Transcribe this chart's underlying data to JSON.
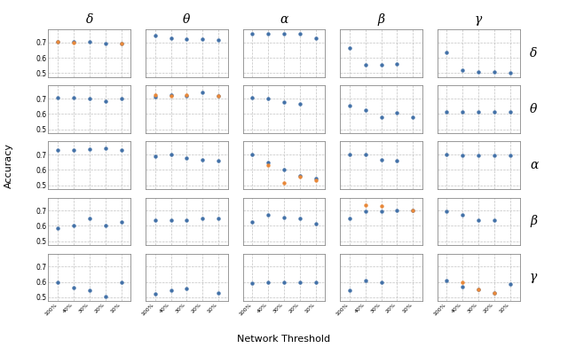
{
  "col_labels": [
    "δ",
    "θ",
    "α",
    "β",
    "γ"
  ],
  "row_labels": [
    "δ",
    "θ",
    "α",
    "β",
    "γ"
  ],
  "x_labels": [
    "100%",
    "40%",
    "30%",
    "20%",
    "10%"
  ],
  "x_vals": [
    0,
    1,
    2,
    3,
    4
  ],
  "xlabel": "Network Threshold",
  "ylabel": "Accuracy",
  "ylim": [
    0.475,
    0.785
  ],
  "yticks": [
    0.5,
    0.6,
    0.7
  ],
  "color_blue": "#4472a8",
  "color_orange": "#e8883a",
  "dot_size": 10,
  "data": {
    "row0_col0": {
      "blue": [
        0.705,
        0.703,
        0.703,
        0.695,
        0.695
      ],
      "orange": [
        0.705,
        0.697,
        null,
        null,
        0.692
      ]
    },
    "row0_col1": {
      "blue": [
        0.745,
        0.73,
        0.725,
        0.722,
        0.72
      ],
      "orange": [
        null,
        null,
        null,
        null,
        null
      ]
    },
    "row0_col2": {
      "blue": [
        0.755,
        0.758,
        0.755,
        0.755,
        0.73
      ],
      "orange": [
        null,
        null,
        null,
        null,
        null
      ]
    },
    "row0_col3": {
      "blue": [
        0.665,
        0.555,
        0.555,
        0.56,
        null
      ],
      "orange": [
        null,
        null,
        null,
        null,
        null
      ]
    },
    "row0_col4": {
      "blue": [
        0.635,
        0.52,
        0.51,
        0.51,
        0.505
      ],
      "orange": [
        null,
        null,
        null,
        null,
        null
      ]
    },
    "row1_col0": {
      "blue": [
        0.705,
        0.705,
        0.703,
        0.685,
        0.7
      ],
      "orange": [
        null,
        null,
        null,
        null,
        null
      ]
    },
    "row1_col1": {
      "blue": [
        0.71,
        0.725,
        0.72,
        0.742,
        0.715
      ],
      "orange": [
        0.725,
        0.72,
        0.722,
        null,
        0.718
      ]
    },
    "row1_col2": {
      "blue": [
        0.705,
        0.7,
        0.68,
        0.668,
        null
      ],
      "orange": [
        null,
        null,
        null,
        null,
        null
      ]
    },
    "row1_col3": {
      "blue": [
        0.655,
        0.625,
        0.578,
        0.61,
        0.58
      ],
      "orange": [
        null,
        null,
        null,
        null,
        null
      ]
    },
    "row1_col4": {
      "blue": [
        0.615,
        0.612,
        0.615,
        0.615,
        0.615
      ],
      "orange": [
        null,
        null,
        null,
        null,
        null
      ]
    },
    "row2_col0": {
      "blue": [
        0.73,
        0.73,
        0.735,
        0.74,
        0.73
      ],
      "orange": [
        null,
        null,
        null,
        null,
        null
      ]
    },
    "row2_col1": {
      "blue": [
        0.692,
        0.698,
        0.68,
        0.668,
        0.66
      ],
      "orange": [
        null,
        null,
        null,
        null,
        null
      ]
    },
    "row2_col2": {
      "blue": [
        0.7,
        0.65,
        0.6,
        0.56,
        0.545
      ],
      "orange": [
        null,
        0.63,
        0.515,
        0.555,
        0.535
      ]
    },
    "row2_col3": {
      "blue": [
        0.7,
        0.7,
        0.665,
        0.66,
        null
      ],
      "orange": [
        null,
        null,
        null,
        null,
        null
      ]
    },
    "row2_col4": {
      "blue": [
        0.7,
        0.695,
        0.695,
        0.695,
        0.695
      ],
      "orange": [
        null,
        null,
        null,
        null,
        null
      ]
    },
    "row3_col0": {
      "blue": [
        0.585,
        0.605,
        0.65,
        0.6,
        0.625
      ],
      "orange": [
        null,
        null,
        null,
        null,
        null
      ]
    },
    "row3_col1": {
      "blue": [
        0.635,
        0.64,
        0.638,
        0.648,
        0.648
      ],
      "orange": [
        null,
        null,
        null,
        null,
        null
      ]
    },
    "row3_col2": {
      "blue": [
        0.625,
        0.67,
        0.655,
        0.65,
        0.615
      ],
      "orange": [
        null,
        null,
        null,
        null,
        null
      ]
    },
    "row3_col3": {
      "blue": [
        0.65,
        0.695,
        0.695,
        0.7,
        0.7
      ],
      "orange": [
        null,
        0.735,
        0.733,
        null,
        0.7
      ]
    },
    "row3_col4": {
      "blue": [
        0.695,
        0.67,
        0.64,
        0.64,
        null
      ],
      "orange": [
        null,
        null,
        null,
        null,
        null
      ]
    },
    "row4_col0": {
      "blue": [
        0.6,
        0.56,
        0.545,
        0.505,
        0.6
      ],
      "orange": [
        null,
        null,
        null,
        null,
        null
      ]
    },
    "row4_col1": {
      "blue": [
        0.52,
        0.545,
        0.558,
        null,
        0.53
      ],
      "orange": [
        null,
        null,
        null,
        null,
        null
      ]
    },
    "row4_col2": {
      "blue": [
        0.59,
        0.595,
        0.6,
        0.6,
        0.6
      ],
      "orange": [
        null,
        null,
        null,
        null,
        null
      ]
    },
    "row4_col3": {
      "blue": [
        0.545,
        0.61,
        0.6,
        null,
        null
      ],
      "orange": [
        null,
        null,
        null,
        null,
        null
      ]
    },
    "row4_col4": {
      "blue": [
        0.61,
        0.57,
        0.548,
        0.53,
        0.588
      ],
      "orange": [
        null,
        0.595,
        0.55,
        0.528,
        null
      ]
    }
  }
}
